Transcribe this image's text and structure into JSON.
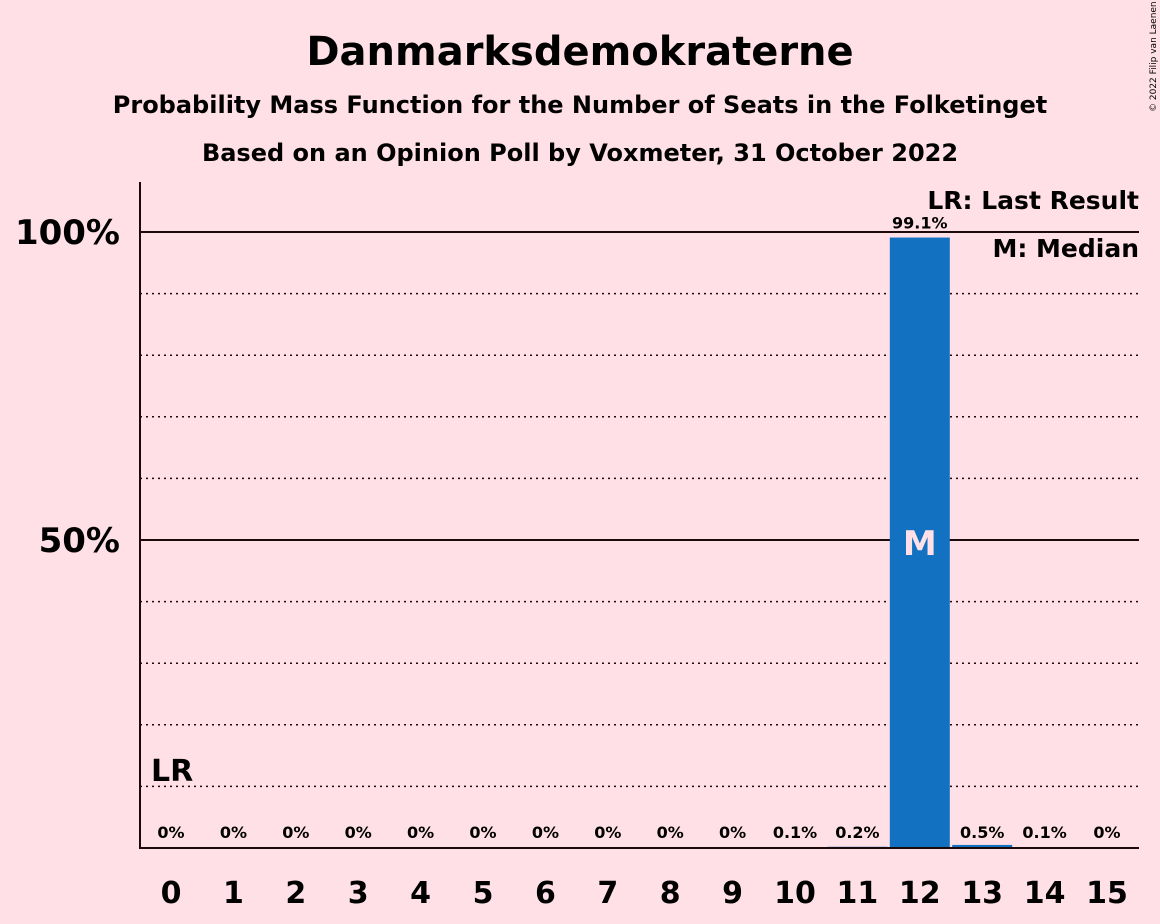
{
  "chart_data": {
    "type": "bar",
    "title": "Danmarksdemokraterne",
    "subtitle": "Probability Mass Function for the Number of Seats in the Folketinget",
    "subtitle2": "Based on an Opinion Poll by Voxmeter, 31 October 2022",
    "credit": "© 2022 Filip van Laenen",
    "categories": [
      "0",
      "1",
      "2",
      "3",
      "4",
      "5",
      "6",
      "7",
      "8",
      "9",
      "10",
      "11",
      "12",
      "13",
      "14",
      "15"
    ],
    "values": [
      0,
      0,
      0,
      0,
      0,
      0,
      0,
      0,
      0,
      0,
      0.1,
      0.2,
      99.1,
      0.5,
      0.1,
      0
    ],
    "value_labels": [
      "0%",
      "0%",
      "0%",
      "0%",
      "0%",
      "0%",
      "0%",
      "0%",
      "0%",
      "0%",
      "0.1%",
      "0.2%",
      "99.1%",
      "0.5%",
      "0.1%",
      "0%"
    ],
    "yticks": [
      {
        "value": 50,
        "label": "50%"
      },
      {
        "value": 100,
        "label": "100%"
      }
    ],
    "ylim": [
      0,
      100
    ],
    "grid": "dotted every 10%",
    "bar_color": "#1271C0",
    "background_color": "#FFE0E6",
    "last_result": {
      "seats": 0,
      "label": "LR"
    },
    "median": {
      "seats": 12,
      "label": "M"
    },
    "legend": [
      "LR: Last Result",
      "M: Median"
    ],
    "legend_position": "top-right"
  }
}
